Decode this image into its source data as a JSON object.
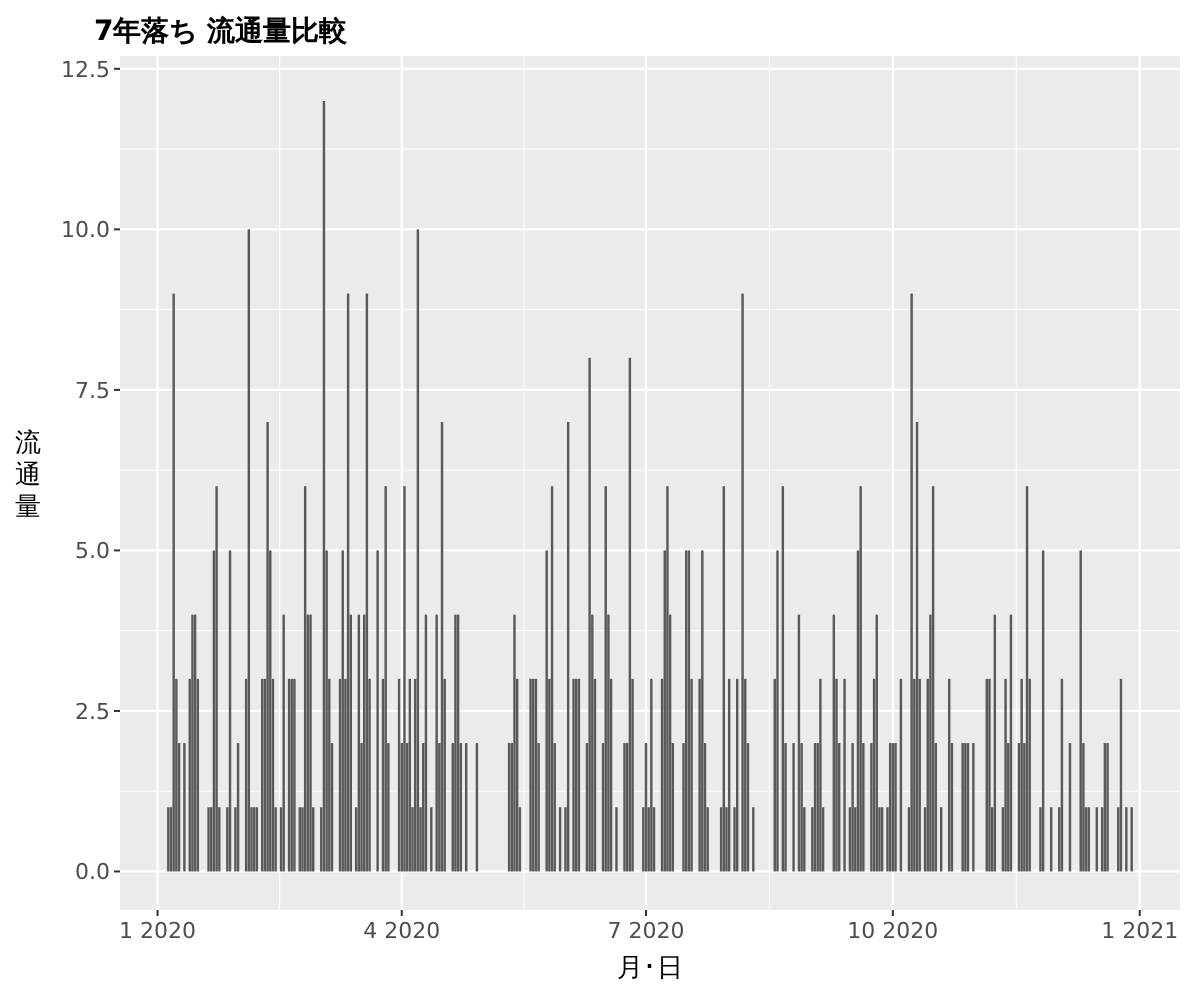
{
  "chart_data": {
    "type": "bar",
    "title": "7年落ち 流通量比較",
    "xlabel": "月･日",
    "ylabel": "流通量",
    "color": "#595959",
    "grid": true,
    "x": [
      "2020-01-05",
      "2020-01-06",
      "2020-01-07",
      "2020-01-08",
      "2020-01-09",
      "2020-01-11",
      "2020-01-13",
      "2020-01-14",
      "2020-01-15",
      "2020-01-16",
      "2020-01-20",
      "2020-01-21",
      "2020-01-22",
      "2020-01-23",
      "2020-01-24",
      "2020-01-27",
      "2020-01-28",
      "2020-01-30",
      "2020-01-31",
      "2020-02-03",
      "2020-02-04",
      "2020-02-05",
      "2020-02-06",
      "2020-02-07",
      "2020-02-09",
      "2020-02-10",
      "2020-02-11",
      "2020-02-12",
      "2020-02-13",
      "2020-02-14",
      "2020-02-16",
      "2020-02-17",
      "2020-02-19",
      "2020-02-20",
      "2020-02-21",
      "2020-02-23",
      "2020-02-24",
      "2020-02-25",
      "2020-02-26",
      "2020-02-27",
      "2020-02-28",
      "2020-03-02",
      "2020-03-03",
      "2020-03-04",
      "2020-03-05",
      "2020-03-06",
      "2020-03-09",
      "2020-03-10",
      "2020-03-11",
      "2020-03-12",
      "2020-03-13",
      "2020-03-15",
      "2020-03-16",
      "2020-03-17",
      "2020-03-18",
      "2020-03-19",
      "2020-03-20",
      "2020-03-23",
      "2020-03-25",
      "2020-03-26",
      "2020-03-27",
      "2020-03-31",
      "2020-04-01",
      "2020-04-02",
      "2020-04-03",
      "2020-04-04",
      "2020-04-05",
      "2020-04-06",
      "2020-04-07",
      "2020-04-08",
      "2020-04-09",
      "2020-04-10",
      "2020-04-12",
      "2020-04-14",
      "2020-04-15",
      "2020-04-16",
      "2020-04-17",
      "2020-04-20",
      "2020-04-21",
      "2020-04-22",
      "2020-04-23",
      "2020-04-25",
      "2020-04-29",
      "2020-05-11",
      "2020-05-12",
      "2020-05-13",
      "2020-05-14",
      "2020-05-15",
      "2020-05-19",
      "2020-05-20",
      "2020-05-21",
      "2020-05-22",
      "2020-05-25",
      "2020-05-26",
      "2020-05-27",
      "2020-05-28",
      "2020-05-30",
      "2020-06-01",
      "2020-06-02",
      "2020-06-04",
      "2020-06-05",
      "2020-06-06",
      "2020-06-09",
      "2020-06-10",
      "2020-06-11",
      "2020-06-12",
      "2020-06-15",
      "2020-06-16",
      "2020-06-17",
      "2020-06-18",
      "2020-06-20",
      "2020-06-23",
      "2020-06-24",
      "2020-06-25",
      "2020-06-26",
      "2020-06-30",
      "2020-07-01",
      "2020-07-02",
      "2020-07-03",
      "2020-07-04",
      "2020-07-07",
      "2020-07-08",
      "2020-07-09",
      "2020-07-10",
      "2020-07-11",
      "2020-07-15",
      "2020-07-16",
      "2020-07-17",
      "2020-07-18",
      "2020-07-21",
      "2020-07-22",
      "2020-07-23",
      "2020-07-24",
      "2020-07-29",
      "2020-07-30",
      "2020-07-31",
      "2020-08-01",
      "2020-08-03",
      "2020-08-04",
      "2020-08-06",
      "2020-08-07",
      "2020-08-08",
      "2020-08-10",
      "2020-08-18",
      "2020-08-19",
      "2020-08-21",
      "2020-08-22",
      "2020-08-25",
      "2020-08-27",
      "2020-08-28",
      "2020-08-29",
      "2020-09-01",
      "2020-09-02",
      "2020-09-03",
      "2020-09-04",
      "2020-09-05",
      "2020-09-09",
      "2020-09-10",
      "2020-09-11",
      "2020-09-13",
      "2020-09-15",
      "2020-09-16",
      "2020-09-17",
      "2020-09-18",
      "2020-09-19",
      "2020-09-20",
      "2020-09-23",
      "2020-09-24",
      "2020-09-25",
      "2020-09-26",
      "2020-09-27",
      "2020-09-29",
      "2020-09-30",
      "2020-10-01",
      "2020-10-02",
      "2020-10-04",
      "2020-10-07",
      "2020-10-08",
      "2020-10-09",
      "2020-10-10",
      "2020-10-11",
      "2020-10-13",
      "2020-10-14",
      "2020-10-15",
      "2020-10-16",
      "2020-10-17",
      "2020-10-19",
      "2020-10-22",
      "2020-10-23",
      "2020-10-27",
      "2020-10-28",
      "2020-10-29",
      "2020-10-31",
      "2020-11-05",
      "2020-11-06",
      "2020-11-07",
      "2020-11-08",
      "2020-11-11",
      "2020-11-12",
      "2020-11-13",
      "2020-11-14",
      "2020-11-17",
      "2020-11-18",
      "2020-11-19",
      "2020-11-20",
      "2020-11-21",
      "2020-11-25",
      "2020-11-26",
      "2020-11-29",
      "2020-12-02",
      "2020-12-03",
      "2020-12-06",
      "2020-12-10",
      "2020-12-11",
      "2020-12-12",
      "2020-12-13",
      "2020-12-16",
      "2020-12-18",
      "2020-12-19",
      "2020-12-20",
      "2020-12-24",
      "2020-12-25",
      "2020-12-27",
      "2020-12-29"
    ],
    "values": [
      1,
      1,
      9,
      3,
      2,
      2,
      3,
      4,
      4,
      3,
      1,
      1,
      5,
      6,
      1,
      1,
      5,
      1,
      2,
      3,
      10,
      1,
      1,
      1,
      3,
      3,
      7,
      5,
      3,
      1,
      1,
      4,
      3,
      3,
      3,
      1,
      1,
      6,
      4,
      4,
      1,
      1,
      12,
      5,
      3,
      2,
      3,
      5,
      3,
      9,
      4,
      1,
      4,
      2,
      4,
      9,
      3,
      5,
      3,
      6,
      2,
      3,
      2,
      6,
      2,
      3,
      1,
      3,
      10,
      1,
      2,
      4,
      1,
      4,
      2,
      7,
      3,
      2,
      4,
      4,
      2,
      2,
      2,
      2,
      2,
      4,
      3,
      1,
      3,
      3,
      3,
      2,
      5,
      3,
      6,
      2,
      1,
      1,
      7,
      3,
      3,
      3,
      2,
      8,
      4,
      3,
      2,
      6,
      4,
      3,
      1,
      2,
      2,
      8,
      3,
      1,
      2,
      1,
      3,
      1,
      3,
      5,
      6,
      4,
      2,
      2,
      5,
      5,
      3,
      3,
      5,
      2,
      1,
      1,
      6,
      1,
      3,
      1,
      3,
      9,
      3,
      2,
      1,
      3,
      5,
      6,
      2,
      2,
      4,
      2,
      1,
      1,
      2,
      2,
      3,
      1,
      4,
      3,
      2,
      3,
      1,
      2,
      1,
      5,
      6,
      2,
      2,
      3,
      4,
      1,
      1,
      1,
      2,
      2,
      2,
      3,
      1,
      9,
      3,
      7,
      3,
      1,
      3,
      4,
      6,
      2,
      1,
      3,
      2,
      2,
      2,
      2,
      2,
      3,
      3,
      1,
      4,
      1,
      3,
      2,
      4,
      2,
      3,
      2,
      6,
      3,
      1,
      5,
      1,
      1,
      3,
      2,
      5,
      2,
      1,
      1,
      1,
      1,
      2,
      2,
      1,
      3,
      1,
      1
    ],
    "xlim": [
      "2019-12-18",
      "2021-01-16"
    ],
    "xticks": [
      {
        "value": "2020-01-01",
        "label": "1 2020"
      },
      {
        "value": "2020-04-01",
        "label": "4 2020"
      },
      {
        "value": "2020-07-01",
        "label": "7 2020"
      },
      {
        "value": "2020-10-01",
        "label": "10 2020"
      },
      {
        "value": "2021-01-01",
        "label": "1 2021"
      }
    ],
    "ylim": [
      -0.6,
      12.7
    ],
    "yticks": [
      {
        "value": 0,
        "label": "0.0"
      },
      {
        "value": 2.5,
        "label": "2.5"
      },
      {
        "value": 5,
        "label": "5.0"
      },
      {
        "value": 7.5,
        "label": "7.5"
      },
      {
        "value": 10,
        "label": "10.0"
      },
      {
        "value": 12.5,
        "label": "12.5"
      }
    ]
  }
}
